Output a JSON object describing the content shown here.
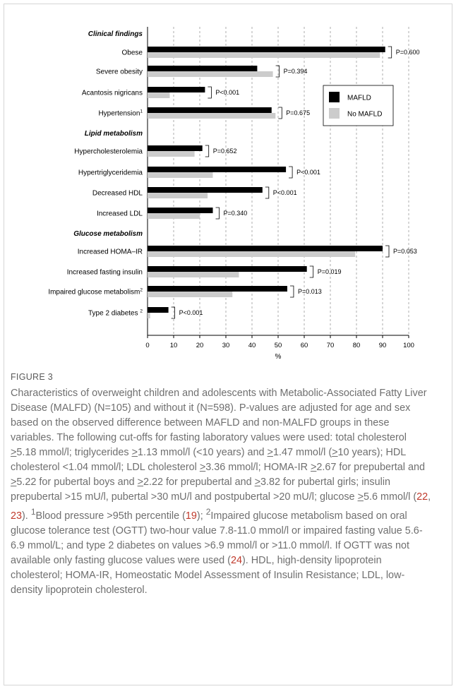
{
  "chart_data": {
    "type": "bar",
    "orientation": "horizontal",
    "series": [
      {
        "name": "MAFLD",
        "color": "#000000"
      },
      {
        "name": "No MAFLD",
        "color": "#cccccc"
      }
    ],
    "groups": [
      {
        "title": "Clinical findings",
        "rows": [
          {
            "label": "Obese",
            "sup": "",
            "mafld": 91,
            "no_mafld": 89,
            "p": "P=0.600"
          },
          {
            "label": "Severe obesity",
            "sup": "",
            "mafld": 42,
            "no_mafld": 48,
            "p": "P=0.394"
          },
          {
            "label": "Acantosis nigricans",
            "sup": "",
            "mafld": 22,
            "no_mafld": 8.5,
            "p": "P<0.001"
          },
          {
            "label": "Hypertension",
            "sup": "1",
            "mafld": 47.5,
            "no_mafld": 49,
            "p": "P=0.675"
          }
        ]
      },
      {
        "title": "Lipid metabolism",
        "rows": [
          {
            "label": "Hypercholesterolemia",
            "sup": "",
            "mafld": 21,
            "no_mafld": 18,
            "p": "P=0.652"
          },
          {
            "label": "Hypertriglyceridemia",
            "sup": "",
            "mafld": 53,
            "no_mafld": 25,
            "p": "P<0.001"
          },
          {
            "label": "Decreased HDL",
            "sup": "",
            "mafld": 44,
            "no_mafld": 23,
            "p": "P<0.001"
          },
          {
            "label": "Increased LDL",
            "sup": "",
            "mafld": 25,
            "no_mafld": 20,
            "p": "P=0.340"
          }
        ]
      },
      {
        "title": "Glucose metabolism",
        "rows": [
          {
            "label": "Increased HOMA–IR",
            "sup": "",
            "mafld": 90,
            "no_mafld": 79.5,
            "p": "P=0.053"
          },
          {
            "label": "Increased fasting insulin",
            "sup": "",
            "mafld": 61,
            "no_mafld": 35,
            "p": "P=0.019"
          },
          {
            "label": "Impaired glucose metabolism",
            "sup": "2",
            "mafld": 53.5,
            "no_mafld": 32.5,
            "p": "P=0.013"
          },
          {
            "label": "Type 2 diabetes ",
            "sup": "2",
            "mafld": 8,
            "no_mafld": 1,
            "p": "P<0.001"
          }
        ]
      }
    ],
    "xlabel": "%",
    "xlim": [
      0,
      100
    ],
    "xticks": [
      0,
      10,
      20,
      30,
      40,
      50,
      60,
      70,
      80,
      90,
      100
    ],
    "grid": "vertical dashed",
    "legend_position": "right"
  },
  "caption": {
    "figure_label": "FIGURE 3",
    "segments": [
      {
        "t": "Characteristics of overweight children and adolescents with Metabolic-Associated Fatty Liver Disease (MALFD) (N=105) and without it (N=598). P-values are adjusted for age and sex based on the observed difference between MAFLD and non-MALFD groups in these variables. The following cut-offs for fasting laboratory values were used: total cholesterol "
      },
      {
        "t": ">",
        "u": true
      },
      {
        "t": "5.18 mmol/l; triglycerides "
      },
      {
        "t": ">",
        "u": true
      },
      {
        "t": "1.13 mmol/l (<10 years) and "
      },
      {
        "t": ">",
        "u": true
      },
      {
        "t": "1.47 mmol/l ("
      },
      {
        "t": ">",
        "u": true
      },
      {
        "t": "10 years); HDL cholesterol <1.04 mmol/l; LDL cholesterol "
      },
      {
        "t": ">",
        "u": true
      },
      {
        "t": "3.36 mmol/l; HOMA-IR "
      },
      {
        "t": ">",
        "u": true
      },
      {
        "t": "2.67 for prepubertal and "
      },
      {
        "t": ">",
        "u": true
      },
      {
        "t": "5.22 for pubertal boys and "
      },
      {
        "t": ">",
        "u": true
      },
      {
        "t": "2.22 for prepubertal and "
      },
      {
        "t": ">",
        "u": true
      },
      {
        "t": "3.82 for pubertal girls; insulin prepubertal >15 mU/l, pubertal >30 mU/l and postpubertal >20 mU/l; glucose "
      },
      {
        "t": ">",
        "u": true
      },
      {
        "t": "5.6 mmol/l ("
      },
      {
        "t": "22",
        "ref": true
      },
      {
        "t": ", "
      },
      {
        "t": "23",
        "ref": true
      },
      {
        "t": "). "
      },
      {
        "t": "1",
        "sup": true
      },
      {
        "t": "Blood pressure >95th percentile ("
      },
      {
        "t": "19",
        "ref": true
      },
      {
        "t": "); "
      },
      {
        "t": "2",
        "sup": true
      },
      {
        "t": "Impaired glucose metabolism based on oral glucose tolerance test (OGTT) two-hour value 7.8-11.0 mmol/l or impaired fasting value 5.6-6.9 mmol/L; and type 2 diabetes on values >6.9 mmol/l or >11.0 mmol/l. If OGTT was not available only fasting glucose values were used ("
      },
      {
        "t": "24",
        "ref": true
      },
      {
        "t": "). HDL, high-density lipoprotein cholesterol; HOMA-IR, Homeostatic Model Assessment of Insulin Resistance; LDL, low-density lipoprotein cholesterol."
      }
    ]
  }
}
